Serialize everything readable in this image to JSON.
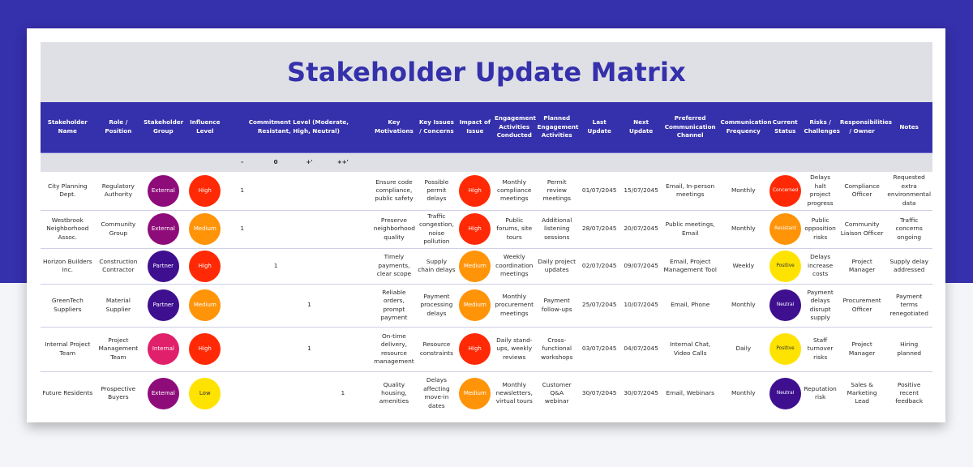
{
  "title": "Stakeholder Update Matrix",
  "colors": {
    "brand_blue": "#3530ab",
    "header_gray": "#dfe0e5",
    "external": "#8e0c7a",
    "partner": "#3e0f8f",
    "internal": "#e0206a",
    "high": "#ff2a05",
    "medium": "#ff9409",
    "low": "#ffe300",
    "concerned": "#ff2a05",
    "resistant": "#ff9409",
    "positive": "#ffe300",
    "neutral": "#3e0f8f"
  },
  "headers": {
    "name": "Stakeholder Name",
    "role": "Role / Position",
    "group": "Stakeholder Group",
    "influence": "Influence Level",
    "commitment": "Commitment Level (Moderate, Resistant, High, Neutral)",
    "motivations": "Key Motivations",
    "issues": "Key Issues / Concerns",
    "impact": "Impact of Issue",
    "conducted": "Engagement Activities Conducted",
    "planned": "Planned Engagement Activities",
    "last_update": "Last Update",
    "next_update": "Next Update",
    "channel": "Preferred Communication Channel",
    "frequency": "Communication Frequency",
    "status": "Current Status",
    "risks": "Risks / Challenges",
    "owner": "Responsibilities / Owner",
    "notes": "Notes"
  },
  "commitment_scale": [
    "-",
    "0",
    "+'",
    "++'"
  ],
  "rows": [
    {
      "name": "City Planning Dept.",
      "role": "Regulatory Authority",
      "group": "External",
      "influence": "High",
      "commitment": [
        "1",
        "",
        "",
        ""
      ],
      "motivations": "Ensure code compliance, public safety",
      "issues": "Possible permit delays",
      "impact": "High",
      "conducted": "Monthly compliance meetings",
      "planned": "Permit review meetings",
      "last_update": "01/07/2045",
      "next_update": "15/07/2045",
      "channel": "Email, In-person meetings",
      "frequency": "Monthly",
      "status": "Concerned",
      "risks": "Delays halt project progress",
      "owner": "Compliance Officer",
      "notes": "Requested extra environmental data"
    },
    {
      "name": "Westbrook Neighborhood Assoc.",
      "role": "Community Group",
      "group": "External",
      "influence": "Medium",
      "commitment": [
        "1",
        "",
        "",
        ""
      ],
      "motivations": "Preserve neighborhood quality",
      "issues": "Traffic congestion, noise pollution",
      "impact": "High",
      "conducted": "Public forums, site tours",
      "planned": "Additional listening sessions",
      "last_update": "28/07/2045",
      "next_update": "20/07/2045",
      "channel": "Public meetings, Email",
      "frequency": "Monthly",
      "status": "Resistant",
      "risks": "Public opposition risks",
      "owner": "Community Liaison Officer",
      "notes": "Traffic concerns ongoing"
    },
    {
      "name": "Horizon Builders Inc.",
      "role": "Construction Contractor",
      "group": "Partner",
      "influence": "High",
      "commitment": [
        "",
        "1",
        "",
        ""
      ],
      "motivations": "Timely payments, clear scope",
      "issues": "Supply chain delays",
      "impact": "Medium",
      "conducted": "Weekly coordination meetings",
      "planned": "Daily project updates",
      "last_update": "02/07/2045",
      "next_update": "09/07/2045",
      "channel": "Email, Project Management Tool",
      "frequency": "Weekly",
      "status": "Positive",
      "risks": "Delays increase costs",
      "owner": "Project Manager",
      "notes": "Supply delay addressed"
    },
    {
      "name": "GreenTech Suppliers",
      "role": "Material Supplier",
      "group": "Partner",
      "influence": "Medium",
      "commitment": [
        "",
        "",
        "1",
        ""
      ],
      "motivations": "Reliable orders, prompt payment",
      "issues": "Payment processing delays",
      "impact": "Medium",
      "conducted": "Monthly procurement meetings",
      "planned": "Payment follow-ups",
      "last_update": "25/07/2045",
      "next_update": "10/07/2045",
      "channel": "Email, Phone",
      "frequency": "Monthly",
      "status": "Neutral",
      "risks": "Payment delays disrupt supply",
      "owner": "Procurement Officer",
      "notes": "Payment terms renegotiated"
    },
    {
      "name": "Internal Project Team",
      "role": "Project Management Team",
      "group": "Internal",
      "influence": "High",
      "commitment": [
        "",
        "",
        "1",
        ""
      ],
      "motivations": "On-time delivery, resource management",
      "issues": "Resource constraints",
      "impact": "High",
      "conducted": "Daily stand-ups, weekly reviews",
      "planned": "Cross-functional workshops",
      "last_update": "03/07/2045",
      "next_update": "04/07/2045",
      "channel": "Internal Chat, Video Calls",
      "frequency": "Daily",
      "status": "Positive",
      "risks": "Staff turnover risks",
      "owner": "Project Manager",
      "notes": "Hiring planned"
    },
    {
      "name": "Future Residents",
      "role": "Prospective Buyers",
      "group": "External",
      "influence": "Low",
      "commitment": [
        "",
        "",
        "",
        "1"
      ],
      "motivations": "Quality housing, amenities",
      "issues": "Delays affecting move-in dates",
      "impact": "Medium",
      "conducted": "Monthly newsletters, virtual tours",
      "planned": "Customer Q&A webinar",
      "last_update": "30/07/2045",
      "next_update": "30/07/2045",
      "channel": "Email, Webinars",
      "frequency": "Monthly",
      "status": "Neutral",
      "risks": "Reputation risk",
      "owner": "Sales & Marketing Lead",
      "notes": "Positive recent feedback"
    }
  ]
}
